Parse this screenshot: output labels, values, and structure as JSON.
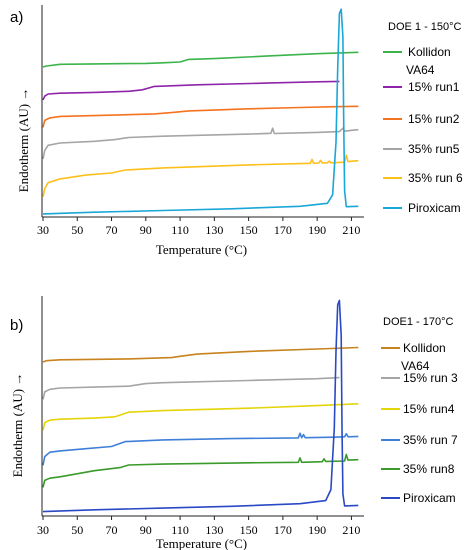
{
  "chart_data": [
    {
      "type": "line",
      "panel_label": "a)",
      "legend_title": "DOE 1 - 150°C",
      "xlabel": "Temperature (°C)",
      "ylabel": "Endotherm (AU) →",
      "xlim": [
        30,
        215
      ],
      "xticks": [
        30,
        50,
        70,
        90,
        110,
        130,
        150,
        170,
        190,
        210
      ],
      "ylim": [
        0,
        100
      ],
      "grid": false,
      "legend_position": "right",
      "series": [
        {
          "name": "Kollidon VA64",
          "color": "#3cb44b",
          "points": [
            [
              30,
              70.6
            ],
            [
              32,
              71.1
            ],
            [
              40,
              71.9
            ],
            [
              60,
              72.1
            ],
            [
              90,
              72.3
            ],
            [
              100,
              72.6
            ],
            [
              110,
              73.0
            ],
            [
              115,
              74.2
            ],
            [
              130,
              74.6
            ],
            [
              160,
              75.8
            ],
            [
              190,
              76.9
            ],
            [
              214,
              77.6
            ]
          ]
        },
        {
          "name": "15% run1",
          "color": "#8e24aa",
          "points": [
            [
              30,
              55.0
            ],
            [
              31,
              56.8
            ],
            [
              33,
              57.8
            ],
            [
              40,
              58.2
            ],
            [
              60,
              58.6
            ],
            [
              80,
              59.1
            ],
            [
              88,
              59.8
            ],
            [
              95,
              61.4
            ],
            [
              120,
              62.2
            ],
            [
              160,
              63.0
            ],
            [
              190,
              63.6
            ],
            [
              203,
              63.8
            ]
          ]
        },
        {
          "name": "15% run2",
          "color": "#f4731f",
          "points": [
            [
              30,
              42.0
            ],
            [
              31,
              45.3
            ],
            [
              34,
              46.5
            ],
            [
              40,
              47.2
            ],
            [
              60,
              47.6
            ],
            [
              95,
              48.4
            ],
            [
              105,
              49.0
            ],
            [
              115,
              49.8
            ],
            [
              150,
              50.8
            ],
            [
              180,
              51.4
            ],
            [
              200,
              51.8
            ],
            [
              214,
              52.0
            ]
          ]
        },
        {
          "name": "35% run5",
          "color": "#a5a5a5",
          "points": [
            [
              30,
              27.0
            ],
            [
              31,
              31.0
            ],
            [
              33,
              33.5
            ],
            [
              40,
              34.6
            ],
            [
              60,
              35.4
            ],
            [
              72,
              36.2
            ],
            [
              80,
              37.2
            ],
            [
              100,
              37.8
            ],
            [
              150,
              38.8
            ],
            [
              163,
              39.2
            ],
            [
              164,
              41.6
            ],
            [
              165,
              39.1
            ],
            [
              190,
              39.6
            ],
            [
              203,
              40.0
            ],
            [
              205,
              41.6
            ],
            [
              206,
              40.2
            ],
            [
              212,
              40.8
            ],
            [
              214,
              40.9
            ]
          ]
        },
        {
          "name": "35% run 6",
          "color": "#fdc01a",
          "points": [
            [
              30,
              9.0
            ],
            [
              31,
              13.0
            ],
            [
              33,
              15.8
            ],
            [
              40,
              17.6
            ],
            [
              55,
              19.4
            ],
            [
              70,
              20.4
            ],
            [
              78,
              21.8
            ],
            [
              100,
              22.8
            ],
            [
              150,
              24.2
            ],
            [
              186,
              25.0
            ],
            [
              187,
              26.8
            ],
            [
              188,
              25.0
            ],
            [
              191,
              25.1
            ],
            [
              192,
              26.4
            ],
            [
              193,
              25.1
            ],
            [
              196,
              25.2
            ],
            [
              197,
              26.0
            ],
            [
              198,
              25.2
            ],
            [
              206,
              25.5
            ],
            [
              207,
              28.8
            ],
            [
              208,
              25.8
            ],
            [
              214,
              26.2
            ]
          ]
        },
        {
          "name": "Piroxicam",
          "color": "#1aa7d8",
          "points": [
            [
              30,
              1.0
            ],
            [
              60,
              1.8
            ],
            [
              100,
              2.6
            ],
            [
              140,
              3.4
            ],
            [
              180,
              4.6
            ],
            [
              196,
              6.0
            ],
            [
              199,
              10.0
            ],
            [
              201,
              35.0
            ],
            [
              202,
              70.0
            ],
            [
              203,
              96.0
            ],
            [
              204,
              98.0
            ],
            [
              205,
              85.0
            ],
            [
              205.5,
              45.0
            ],
            [
              206,
              12.0
            ],
            [
              207,
              4.4
            ],
            [
              214,
              4.6
            ]
          ]
        }
      ]
    },
    {
      "type": "line",
      "panel_label": "b)",
      "legend_title": "DOE1 - 170°C",
      "xlabel": "Temperature (°C)",
      "ylabel": "Endotherm (AU) →",
      "xlim": [
        30,
        215
      ],
      "xticks": [
        30,
        50,
        70,
        90,
        110,
        130,
        150,
        170,
        190,
        210
      ],
      "ylim": [
        0,
        100
      ],
      "grid": false,
      "legend_position": "right",
      "series": [
        {
          "name": "Kollidon VA64",
          "color": "#c8821e",
          "points": [
            [
              30,
              70.0
            ],
            [
              32,
              70.6
            ],
            [
              40,
              71.0
            ],
            [
              80,
              71.4
            ],
            [
              105,
              72.0
            ],
            [
              110,
              72.6
            ],
            [
              120,
              73.6
            ],
            [
              150,
              74.8
            ],
            [
              190,
              75.9
            ],
            [
              214,
              76.6
            ]
          ]
        },
        {
          "name": "15% run 3",
          "color": "#a5a5a5",
          "points": [
            [
              30,
              53.0
            ],
            [
              31,
              56.4
            ],
            [
              34,
              57.6
            ],
            [
              40,
              58.2
            ],
            [
              60,
              58.6
            ],
            [
              80,
              59.0
            ],
            [
              90,
              60.2
            ],
            [
              100,
              60.6
            ],
            [
              150,
              61.6
            ],
            [
              190,
              62.4
            ],
            [
              203,
              62.9
            ]
          ]
        },
        {
          "name": "15% run4",
          "color": "#e4d40a",
          "points": [
            [
              30,
              39.0
            ],
            [
              31,
              42.4
            ],
            [
              34,
              43.6
            ],
            [
              40,
              44.0
            ],
            [
              60,
              44.5
            ],
            [
              72,
              45.1
            ],
            [
              80,
              47.2
            ],
            [
              100,
              47.9
            ],
            [
              150,
              49.0
            ],
            [
              190,
              50.2
            ],
            [
              214,
              51.0
            ]
          ]
        },
        {
          "name": "35% run 7",
          "color": "#3f7fd9",
          "points": [
            [
              30,
              23.0
            ],
            [
              31,
              27.0
            ],
            [
              34,
              29.0
            ],
            [
              40,
              29.6
            ],
            [
              55,
              30.6
            ],
            [
              70,
              31.6
            ],
            [
              78,
              33.8
            ],
            [
              100,
              34.6
            ],
            [
              140,
              35.2
            ],
            [
              179,
              35.5
            ],
            [
              180,
              37.6
            ],
            [
              181,
              35.6
            ],
            [
              182,
              37.0
            ],
            [
              183,
              35.6
            ],
            [
              200,
              35.8
            ],
            [
              206,
              36.0
            ],
            [
              207,
              37.4
            ],
            [
              208,
              36.0
            ],
            [
              214,
              36.2
            ]
          ]
        },
        {
          "name": "35% run8",
          "color": "#3a9a2a",
          "points": [
            [
              30,
              13.0
            ],
            [
              31,
              16.2
            ],
            [
              34,
              17.2
            ],
            [
              40,
              17.8
            ],
            [
              60,
              20.6
            ],
            [
              75,
              22.0
            ],
            [
              80,
              23.2
            ],
            [
              100,
              23.6
            ],
            [
              150,
              24.2
            ],
            [
              179,
              24.4
            ],
            [
              180,
              26.4
            ],
            [
              181,
              24.4
            ],
            [
              193,
              24.7
            ],
            [
              194,
              26.0
            ],
            [
              195,
              24.8
            ],
            [
              206,
              25.0
            ],
            [
              207,
              28.0
            ],
            [
              208,
              25.4
            ],
            [
              214,
              25.6
            ]
          ]
        },
        {
          "name": "Piroxicam",
          "color": "#2a49c4",
          "points": [
            [
              30,
              2.0
            ],
            [
              60,
              2.8
            ],
            [
              100,
              3.6
            ],
            [
              140,
              4.4
            ],
            [
              180,
              5.6
            ],
            [
              195,
              7.0
            ],
            [
              198,
              12.0
            ],
            [
              200,
              40.0
            ],
            [
              201,
              75.0
            ],
            [
              202,
              96.0
            ],
            [
              203,
              98.0
            ],
            [
              204,
              82.0
            ],
            [
              204.5,
              40.0
            ],
            [
              205,
              10.0
            ],
            [
              206,
              4.6
            ],
            [
              214,
              4.8
            ]
          ]
        }
      ]
    }
  ]
}
